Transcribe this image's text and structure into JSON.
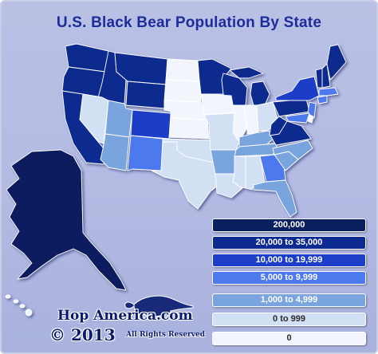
{
  "title": "U.S. Black Bear Population By State",
  "colors": {
    "c0": "#0a1f5e",
    "c1": "#0c2a8f",
    "c2": "#1d3ec8",
    "c3": "#4d79ee",
    "c4": "#7aa4de",
    "c5": "#d2e0f4",
    "c6": "#f2f6fc"
  },
  "legend": [
    {
      "label": "200,000",
      "color_key": "c0",
      "text_color": "#ffffff"
    },
    {
      "label": "20,000 to 35,000",
      "color_key": "c1",
      "text_color": "#ffffff"
    },
    {
      "label": "10,000 to 19,999",
      "color_key": "c2",
      "text_color": "#ffffff"
    },
    {
      "label": "5,000 to 9,999",
      "color_key": "c3",
      "text_color": "#ffffff"
    },
    {
      "label": "1,000 to 4,999",
      "color_key": "c4",
      "text_color": "#ffffff"
    },
    {
      "label": "0 to 999",
      "color_key": "c5",
      "text_color": "#2b2b2b"
    },
    {
      "label": "0",
      "color_key": "c6",
      "text_color": "#2b2b2b"
    }
  ],
  "branding": {
    "site": "Hop America.com",
    "year": "© 2013",
    "rights": "All Rights Reserved",
    "mascot_icon": "anteater-icon"
  }
}
